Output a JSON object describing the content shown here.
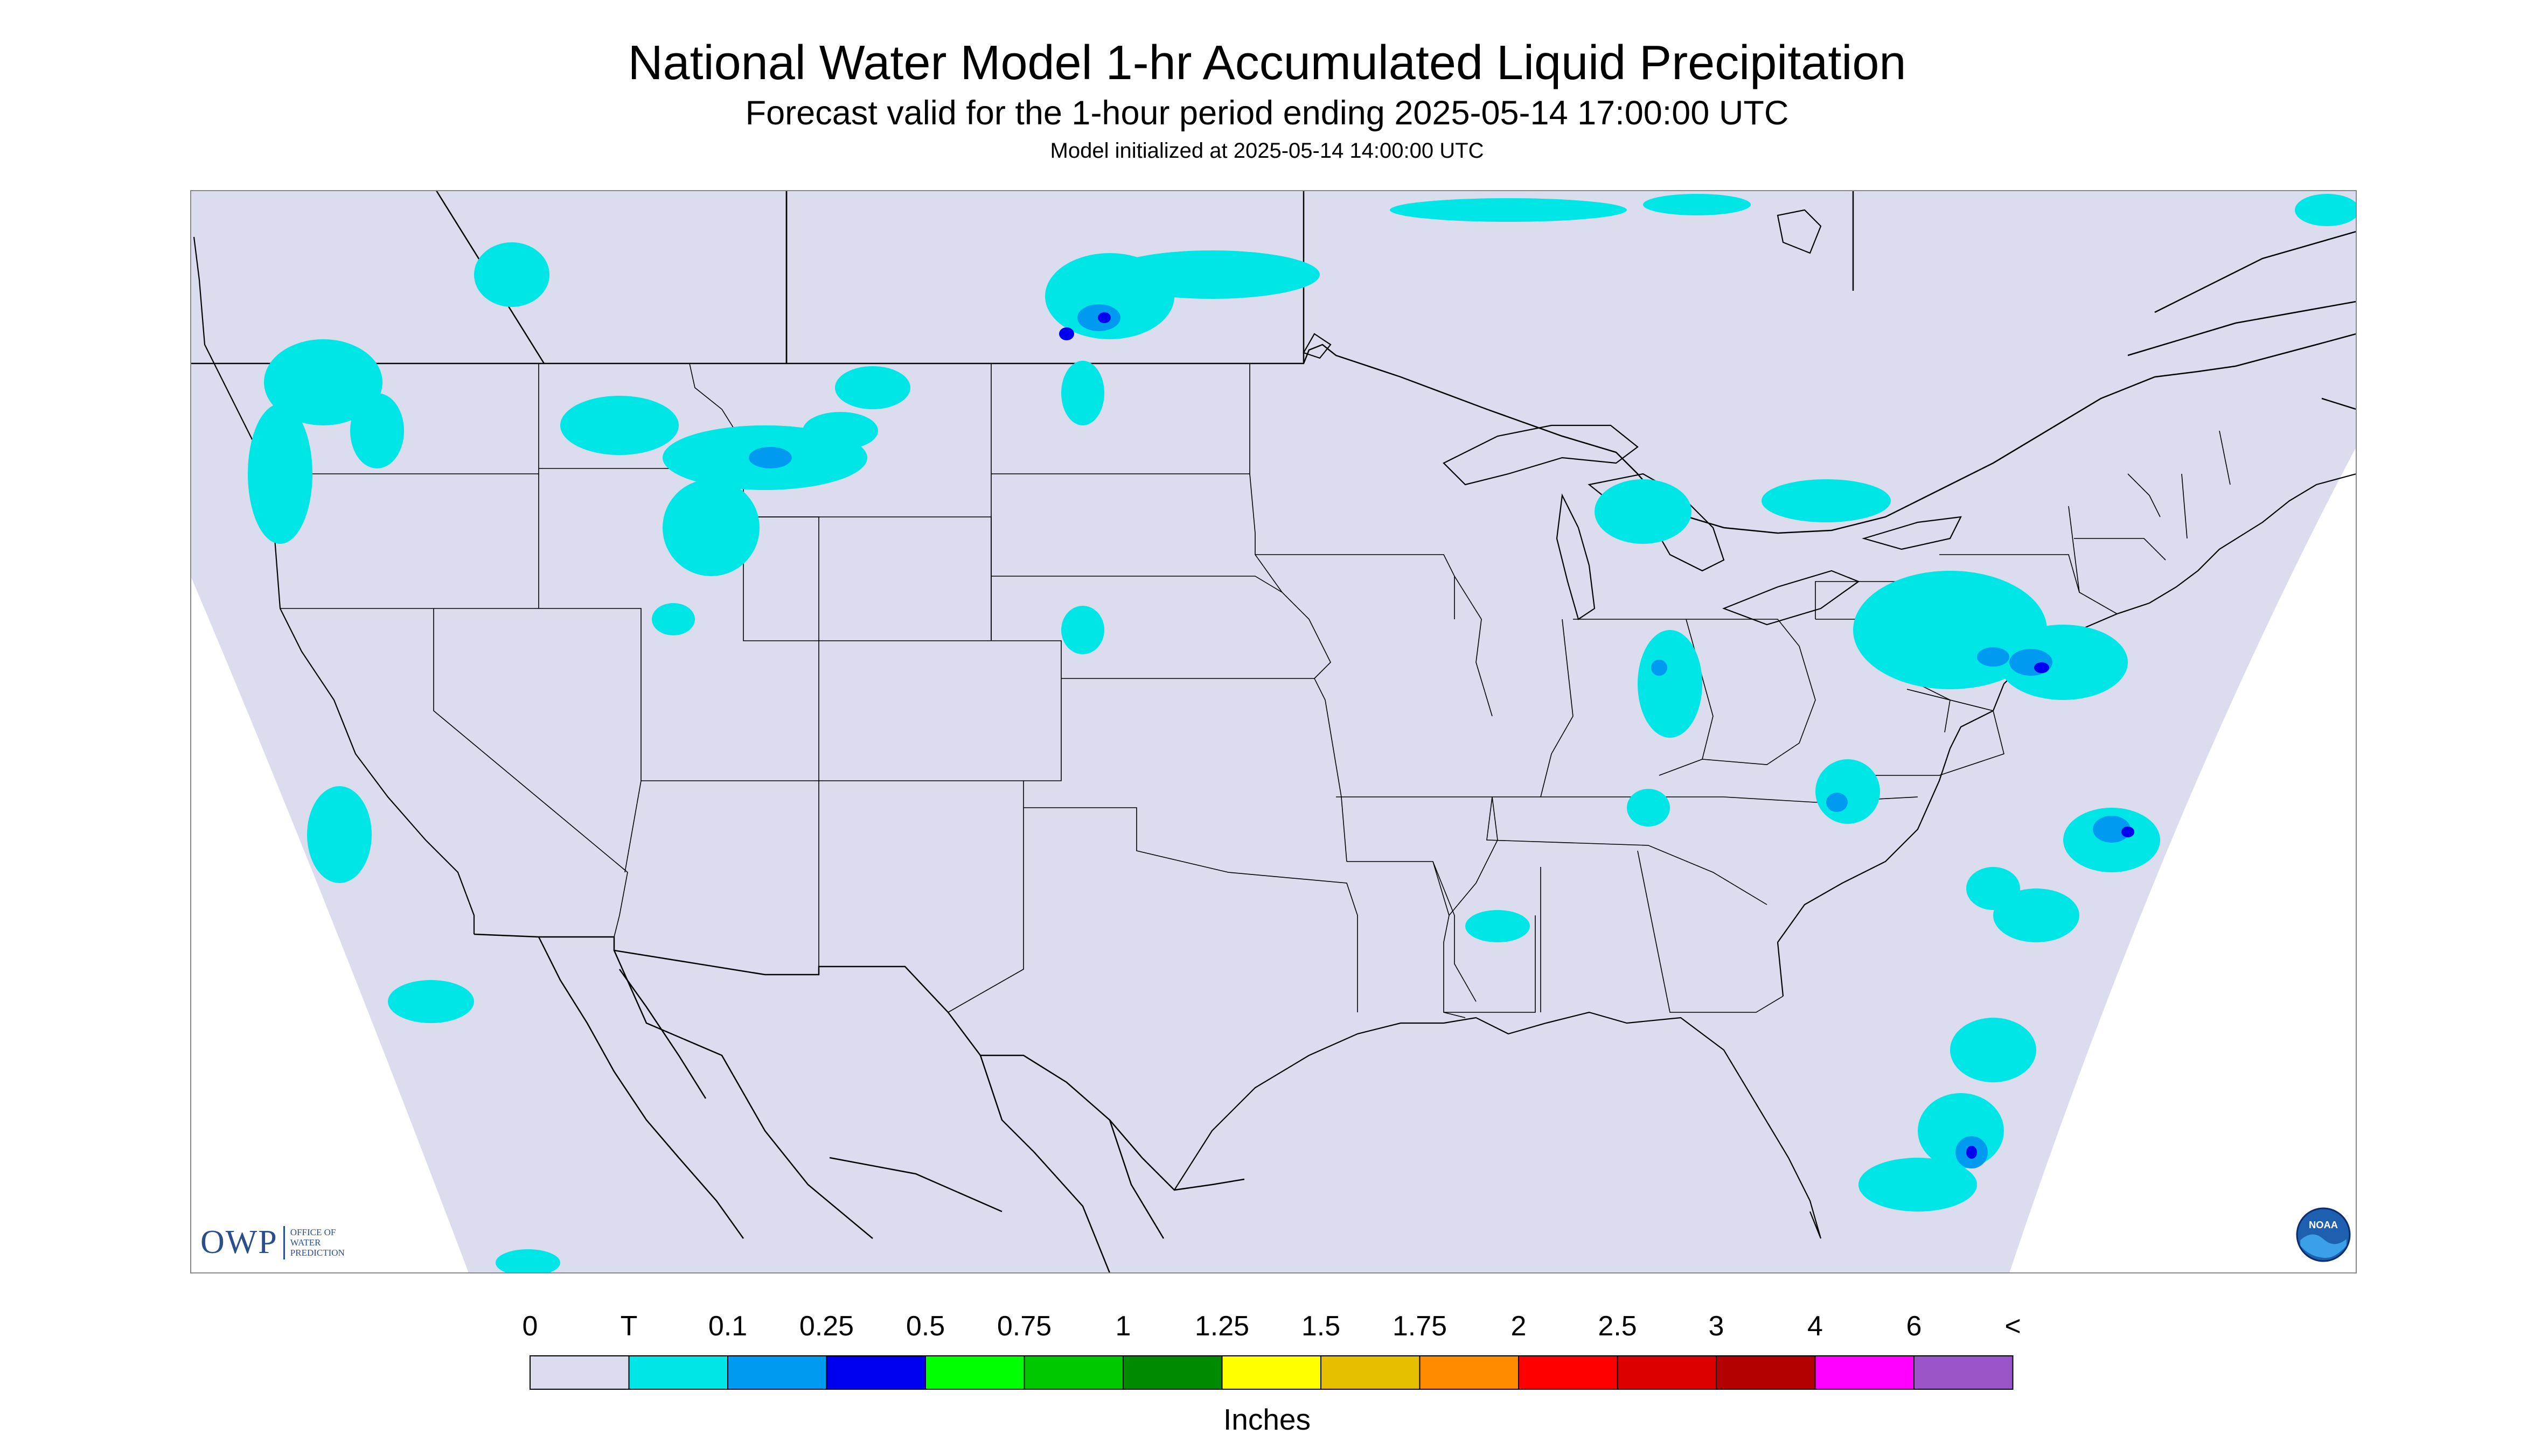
{
  "header": {
    "title": "National Water Model 1-hr Accumulated Liquid Precipitation",
    "subtitle": "Forecast valid for the 1-hour period ending 2025-05-14 17:00:00 UTC",
    "init_line": "Model initialized at 2025-05-14 14:00:00 UTC"
  },
  "logo": {
    "main": "OWP",
    "line1": "OFFICE OF",
    "line2": "WATER",
    "line3": "PREDICTION",
    "noaa_text": "NOAA"
  },
  "legend": {
    "units": "Inches",
    "labels": [
      "0",
      "T",
      "0.1",
      "0.25",
      "0.5",
      "0.75",
      "1",
      "1.25",
      "1.5",
      "1.75",
      "2",
      "2.5",
      "3",
      "4",
      "6",
      "<"
    ],
    "colors": [
      "#dcdcef",
      "#00e5e5",
      "#009bf0",
      "#0000f0",
      "#00ff00",
      "#00c800",
      "#008a00",
      "#ffff00",
      "#e6be00",
      "#ff8c00",
      "#ff0000",
      "#dc0000",
      "#b40000",
      "#ff00ff",
      "#9b55c8"
    ]
  },
  "colors": {
    "map_background": "#dcdcef",
    "outside_domain": "#ffffff",
    "trace": "#00e5e5",
    "light": "#009bf0",
    "moderate": "#0000f0",
    "borders": "#000000"
  }
}
